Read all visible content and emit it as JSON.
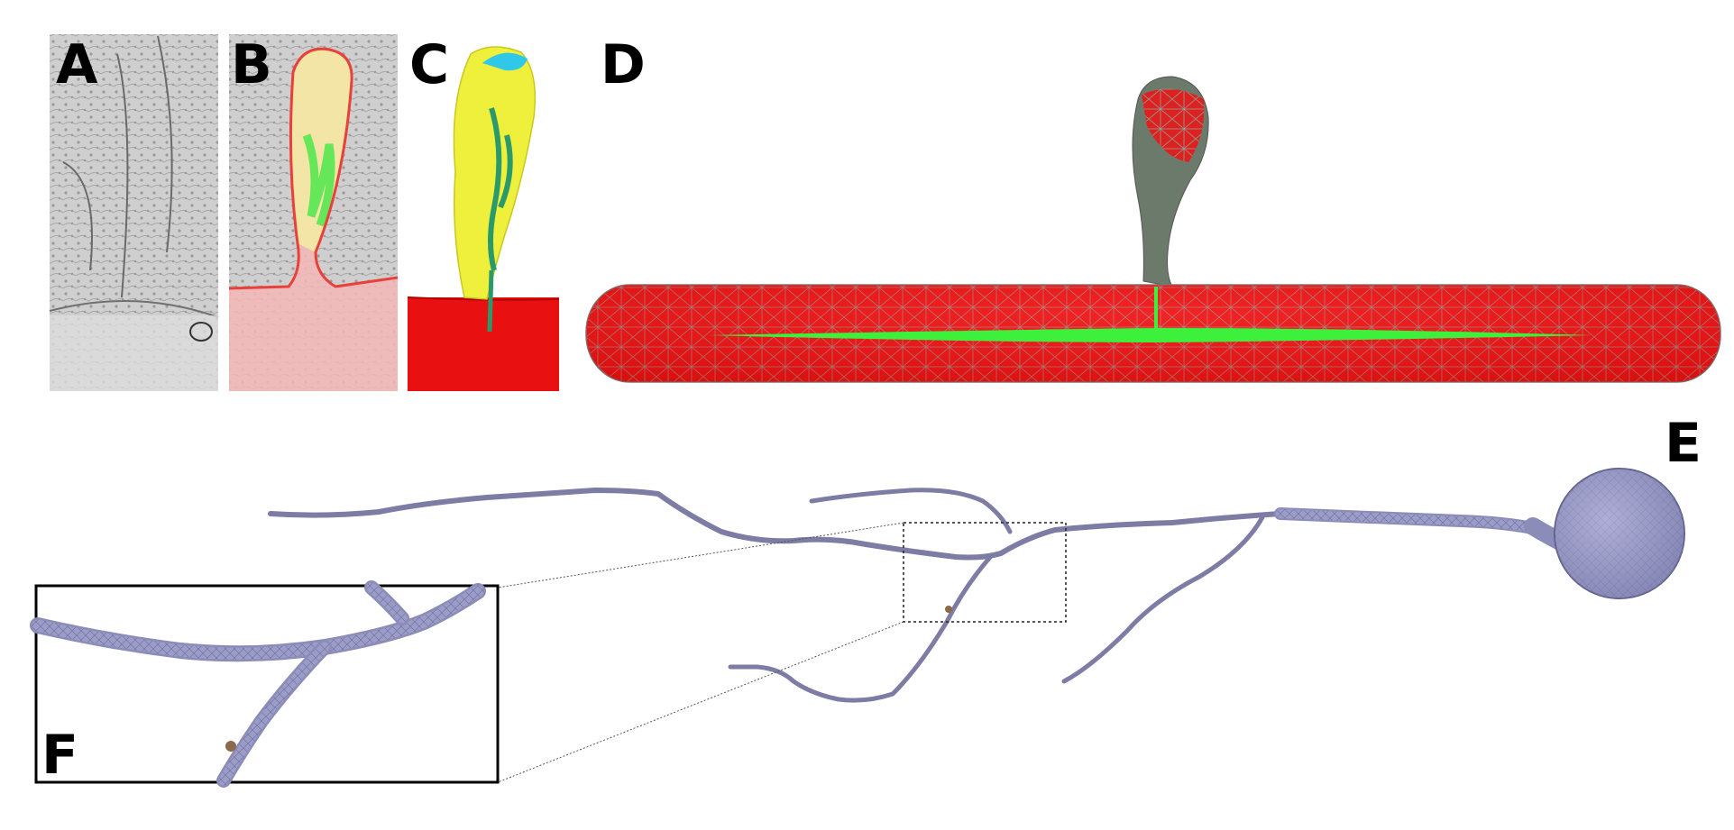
{
  "panels": [
    {
      "id": "a",
      "label": "A"
    },
    {
      "id": "b",
      "label": "B"
    },
    {
      "id": "c",
      "label": "C"
    },
    {
      "id": "d",
      "label": "D"
    },
    {
      "id": "e",
      "label": "E"
    },
    {
      "id": "f",
      "label": "F"
    }
  ],
  "colors": {
    "em_gray": "#c8c8c8",
    "segment_pink": "#f4b6b6",
    "outline_red": "#e8403a",
    "spine_yellow": "#eef03c",
    "dendrite_red": "#e81010",
    "er_green": "#3cf03c",
    "tip_cyan": "#30c8e8",
    "mesh_gray": "#8a8f8a",
    "neuron_lavender": "#8c8cb8"
  }
}
